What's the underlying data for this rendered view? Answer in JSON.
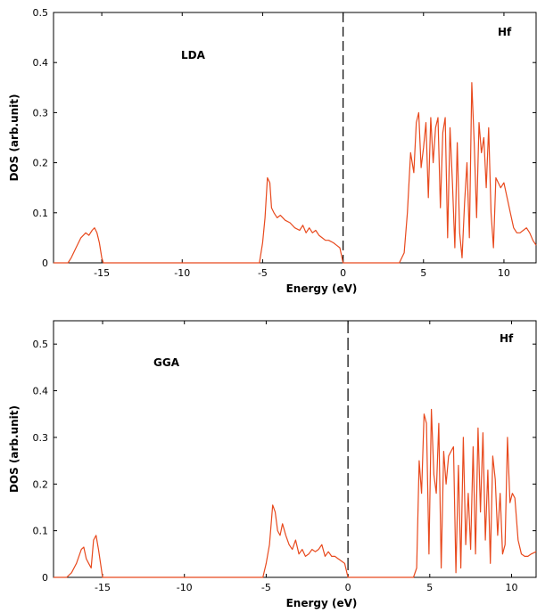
{
  "chart_data": [
    {
      "type": "line",
      "title": "",
      "xlabel": "Energy (eV)",
      "ylabel": "DOS (arb.unit)",
      "xlim": [
        -18,
        12
      ],
      "ylim": [
        0,
        0.5
      ],
      "x_ticks": [
        -15,
        -10,
        -5,
        0,
        5,
        10
      ],
      "x_tick_labels": [
        "-15",
        "-10",
        "-5",
        "0",
        "5",
        "10"
      ],
      "y_ticks": [
        0,
        0.1,
        0.2,
        0.3,
        0.4,
        0.5
      ],
      "y_tick_labels": [
        "0",
        "0.1",
        "0.2",
        "0.3",
        "0.4",
        "0.5"
      ],
      "annotations": [
        "LDA",
        "Hf"
      ],
      "fermi_line_x": 0,
      "line_color": "#e8491d",
      "series": [
        {
          "x": [
            -18,
            -17.1,
            -16.9,
            -16.6,
            -16.3,
            -16.0,
            -15.8,
            -15.6,
            -15.45,
            -15.3,
            -15.15,
            -15.0,
            -14.9,
            -10,
            -5.2,
            -5.0,
            -4.85,
            -4.7,
            -4.55,
            -4.45,
            -4.3,
            -4.1,
            -3.9,
            -3.6,
            -3.3,
            -3.0,
            -2.7,
            -2.5,
            -2.3,
            -2.1,
            -1.9,
            -1.7,
            -1.5,
            -1.3,
            -1.1,
            -0.9,
            -0.6,
            -0.4,
            -0.2,
            0,
            3.5,
            3.8,
            4.0,
            4.2,
            4.4,
            4.55,
            4.7,
            4.85,
            5.0,
            5.15,
            5.3,
            5.45,
            5.6,
            5.75,
            5.9,
            6.05,
            6.2,
            6.35,
            6.5,
            6.65,
            6.8,
            6.95,
            7.1,
            7.25,
            7.4,
            7.55,
            7.7,
            7.85,
            8.0,
            8.15,
            8.3,
            8.45,
            8.6,
            8.75,
            8.9,
            9.05,
            9.2,
            9.35,
            9.5,
            9.65,
            9.8,
            10.0,
            10.2,
            10.4,
            10.6,
            10.8,
            11.0,
            11.2,
            11.4,
            11.6,
            11.8,
            12.0
          ],
          "y": [
            0,
            0,
            0.01,
            0.03,
            0.05,
            0.06,
            0.055,
            0.065,
            0.07,
            0.06,
            0.04,
            0.01,
            0,
            0,
            0,
            0.04,
            0.09,
            0.17,
            0.16,
            0.11,
            0.1,
            0.09,
            0.095,
            0.085,
            0.08,
            0.07,
            0.065,
            0.075,
            0.06,
            0.07,
            0.06,
            0.065,
            0.055,
            0.05,
            0.045,
            0.045,
            0.04,
            0.035,
            0.03,
            0,
            0,
            0.02,
            0.1,
            0.22,
            0.18,
            0.28,
            0.3,
            0.19,
            0.23,
            0.28,
            0.13,
            0.29,
            0.2,
            0.27,
            0.29,
            0.11,
            0.26,
            0.29,
            0.05,
            0.27,
            0.16,
            0.03,
            0.24,
            0.06,
            0.01,
            0.12,
            0.2,
            0.05,
            0.36,
            0.24,
            0.09,
            0.28,
            0.22,
            0.25,
            0.15,
            0.27,
            0.1,
            0.03,
            0.17,
            0.16,
            0.15,
            0.16,
            0.13,
            0.1,
            0.07,
            0.06,
            0.06,
            0.065,
            0.07,
            0.06,
            0.045,
            0.035
          ]
        }
      ]
    },
    {
      "type": "line",
      "title": "",
      "xlabel": "Energy (eV)",
      "ylabel": "DOS (arb.unit)",
      "xlim": [
        -18,
        11.5
      ],
      "ylim": [
        0,
        0.55
      ],
      "x_ticks": [
        -15,
        -10,
        -5,
        0,
        5,
        10
      ],
      "x_tick_labels": [
        "-15",
        "-10",
        "-5",
        "0",
        "5",
        "10"
      ],
      "y_ticks": [
        0,
        0.1,
        0.2,
        0.3,
        0.4,
        0.5
      ],
      "y_tick_labels": [
        "0",
        "0.1",
        "0.2",
        "0.3",
        "0.4",
        "0.5"
      ],
      "annotations": [
        "GGA",
        "Hf"
      ],
      "fermi_line_x": 0,
      "line_color": "#e8491d",
      "series": [
        {
          "x": [
            -18,
            -17.2,
            -16.9,
            -16.6,
            -16.3,
            -16.15,
            -16.0,
            -15.85,
            -15.7,
            -15.55,
            -15.4,
            -15.25,
            -15.0,
            -14.9,
            -10,
            -5.2,
            -5.0,
            -4.8,
            -4.6,
            -4.45,
            -4.3,
            -4.15,
            -4.0,
            -3.8,
            -3.6,
            -3.4,
            -3.2,
            -3.0,
            -2.8,
            -2.6,
            -2.4,
            -2.2,
            -2.0,
            -1.8,
            -1.6,
            -1.4,
            -1.2,
            -1.0,
            -0.8,
            -0.6,
            -0.4,
            -0.2,
            0,
            4.0,
            4.2,
            4.35,
            4.5,
            4.65,
            4.8,
            4.95,
            5.1,
            5.25,
            5.4,
            5.55,
            5.7,
            5.85,
            6.0,
            6.15,
            6.3,
            6.45,
            6.6,
            6.75,
            6.9,
            7.05,
            7.2,
            7.35,
            7.5,
            7.65,
            7.8,
            7.95,
            8.1,
            8.25,
            8.4,
            8.55,
            8.7,
            8.85,
            9.0,
            9.15,
            9.3,
            9.45,
            9.6,
            9.75,
            9.9,
            10.05,
            10.2,
            10.4,
            10.6,
            10.8,
            11.0,
            11.2,
            11.5
          ],
          "y": [
            0,
            0,
            0.01,
            0.03,
            0.06,
            0.065,
            0.04,
            0.03,
            0.02,
            0.08,
            0.09,
            0.06,
            0,
            0,
            0,
            0,
            0.03,
            0.07,
            0.155,
            0.14,
            0.1,
            0.09,
            0.115,
            0.09,
            0.07,
            0.06,
            0.08,
            0.05,
            0.06,
            0.045,
            0.05,
            0.06,
            0.055,
            0.06,
            0.07,
            0.045,
            0.055,
            0.045,
            0.045,
            0.04,
            0.035,
            0.03,
            0,
            0,
            0.02,
            0.25,
            0.18,
            0.35,
            0.33,
            0.05,
            0.36,
            0.22,
            0.18,
            0.33,
            0.02,
            0.27,
            0.2,
            0.26,
            0.27,
            0.28,
            0.01,
            0.24,
            0.02,
            0.3,
            0.07,
            0.18,
            0.06,
            0.28,
            0.05,
            0.32,
            0.14,
            0.31,
            0.08,
            0.23,
            0.03,
            0.26,
            0.21,
            0.09,
            0.18,
            0.05,
            0.07,
            0.3,
            0.16,
            0.18,
            0.17,
            0.08,
            0.05,
            0.045,
            0.045,
            0.05,
            0.055
          ]
        }
      ]
    }
  ]
}
